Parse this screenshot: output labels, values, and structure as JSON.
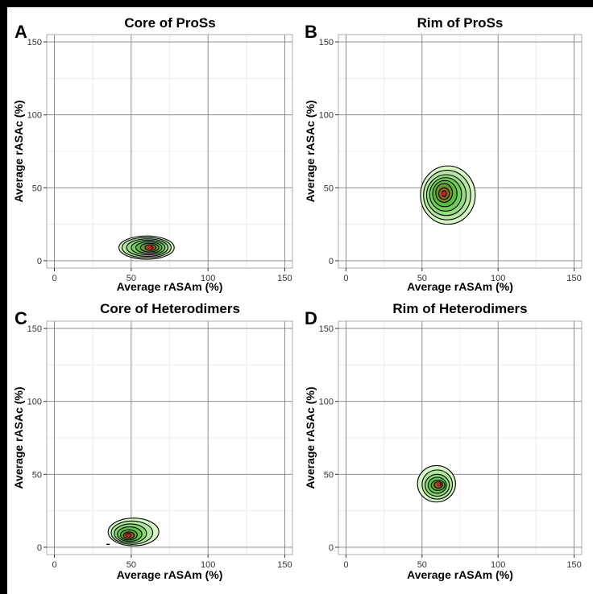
{
  "chart_data": [
    {
      "type": "contour",
      "panel": "A",
      "title": "Core of ProSs",
      "xlabel": "Average rASAm (%)",
      "ylabel": "Average rASAc (%)",
      "xlim": [
        -5,
        155
      ],
      "ylim": [
        -5,
        155
      ],
      "xticks": [
        0,
        50,
        100,
        150
      ],
      "yticks": [
        0,
        50,
        100,
        150
      ],
      "grid": true,
      "peak": {
        "x": 62,
        "y": 9
      },
      "density_levels": [
        {
          "level": 1,
          "x_range": [
            42,
            78
          ],
          "y_range": [
            1,
            17
          ]
        },
        {
          "level": 2,
          "x_range": [
            44,
            76
          ],
          "y_range": [
            2,
            16
          ]
        },
        {
          "level": 3,
          "x_range": [
            47,
            74
          ],
          "y_range": [
            3,
            15
          ]
        },
        {
          "level": 4,
          "x_range": [
            50,
            72
          ],
          "y_range": [
            4,
            14
          ]
        },
        {
          "level": 5,
          "x_range": [
            53,
            70
          ],
          "y_range": [
            5,
            13
          ]
        },
        {
          "level": 6,
          "x_range": [
            56,
            68
          ],
          "y_range": [
            6,
            12
          ]
        },
        {
          "level": 7,
          "x_range": [
            59,
            66
          ],
          "y_range": [
            7,
            11
          ]
        },
        {
          "level": 8,
          "x_range": [
            61,
            64
          ],
          "y_range": [
            8,
            10
          ]
        }
      ]
    },
    {
      "type": "contour",
      "panel": "B",
      "title": "Rim of ProSs",
      "xlabel": "Average rASAm (%)",
      "ylabel": "Average rASAc (%)",
      "xlim": [
        -5,
        155
      ],
      "ylim": [
        -5,
        155
      ],
      "xticks": [
        0,
        50,
        100,
        150
      ],
      "yticks": [
        0,
        50,
        100,
        150
      ],
      "grid": true,
      "peak": {
        "x": 64,
        "y": 46
      },
      "density_levels": [
        {
          "level": 1,
          "x_range": [
            49,
            85
          ],
          "y_range": [
            25,
            65
          ]
        },
        {
          "level": 2,
          "x_range": [
            51,
            82
          ],
          "y_range": [
            28,
            62
          ]
        },
        {
          "level": 3,
          "x_range": [
            53,
            79
          ],
          "y_range": [
            31,
            59
          ]
        },
        {
          "level": 4,
          "x_range": [
            55,
            76
          ],
          "y_range": [
            34,
            57
          ]
        },
        {
          "level": 5,
          "x_range": [
            57,
            73
          ],
          "y_range": [
            37,
            55
          ]
        },
        {
          "level": 6,
          "x_range": [
            59,
            70
          ],
          "y_range": [
            40,
            53
          ]
        },
        {
          "level": 7,
          "x_range": [
            61,
            68
          ],
          "y_range": [
            42,
            50
          ]
        },
        {
          "level": 8,
          "x_range": [
            63,
            66
          ],
          "y_range": [
            44,
            48
          ]
        }
      ]
    },
    {
      "type": "contour",
      "panel": "C",
      "title": "Core of Heterodimers",
      "xlabel": "Average rASAm (%)",
      "ylabel": "Average rASAc (%)",
      "xlim": [
        -5,
        155
      ],
      "ylim": [
        -5,
        155
      ],
      "xticks": [
        0,
        50,
        100,
        150
      ],
      "yticks": [
        0,
        50,
        100,
        150
      ],
      "grid": true,
      "peak": {
        "x": 48,
        "y": 8
      },
      "density_levels": [
        {
          "level": 1,
          "x_range": [
            35,
            68
          ],
          "y_range": [
            1,
            20
          ]
        },
        {
          "level": 2,
          "x_range": [
            37,
            64
          ],
          "y_range": [
            2,
            18
          ]
        },
        {
          "level": 3,
          "x_range": [
            39,
            60
          ],
          "y_range": [
            3,
            16
          ]
        },
        {
          "level": 4,
          "x_range": [
            41,
            57
          ],
          "y_range": [
            4,
            14
          ]
        },
        {
          "level": 5,
          "x_range": [
            43,
            54
          ],
          "y_range": [
            5,
            12
          ]
        },
        {
          "level": 6,
          "x_range": [
            45,
            52
          ],
          "y_range": [
            6,
            10.5
          ]
        },
        {
          "level": 7,
          "x_range": [
            46.5,
            50
          ],
          "y_range": [
            7,
            9.5
          ]
        }
      ],
      "outlier_points": [
        {
          "x": 35,
          "y": 2
        }
      ]
    },
    {
      "type": "contour",
      "panel": "D",
      "title": "Rim of Heterodimers",
      "xlabel": "Average rASAm (%)",
      "ylabel": "Average rASAc (%)",
      "xlim": [
        -5,
        155
      ],
      "ylim": [
        -5,
        155
      ],
      "xticks": [
        0,
        50,
        100,
        150
      ],
      "yticks": [
        0,
        50,
        100,
        150
      ],
      "grid": true,
      "peak": {
        "x": 61,
        "y": 43
      },
      "density_levels": [
        {
          "level": 1,
          "x_range": [
            47,
            72
          ],
          "y_range": [
            31,
            56
          ]
        },
        {
          "level": 2,
          "x_range": [
            50,
            70
          ],
          "y_range": [
            33,
            53
          ]
        },
        {
          "level": 3,
          "x_range": [
            52,
            68
          ],
          "y_range": [
            35,
            50
          ]
        },
        {
          "level": 4,
          "x_range": [
            54,
            66
          ],
          "y_range": [
            37,
            48
          ]
        },
        {
          "level": 5,
          "x_range": [
            56,
            65
          ],
          "y_range": [
            39,
            46
          ]
        },
        {
          "level": 6,
          "x_range": [
            58,
            63.5
          ],
          "y_range": [
            40.5,
            45
          ]
        },
        {
          "level": 7,
          "x_range": [
            60,
            62.5
          ],
          "y_range": [
            42,
            44
          ]
        }
      ]
    }
  ],
  "colors": {
    "contour_line": "#000000",
    "fill_outer": "#d8f5c6",
    "fill_mid": "#56c240",
    "fill_inner": "#a23a1e",
    "peak": "#e01818",
    "grid_major": "#7f7f7f",
    "grid_minor": "#ececec",
    "frame": "#000000"
  }
}
